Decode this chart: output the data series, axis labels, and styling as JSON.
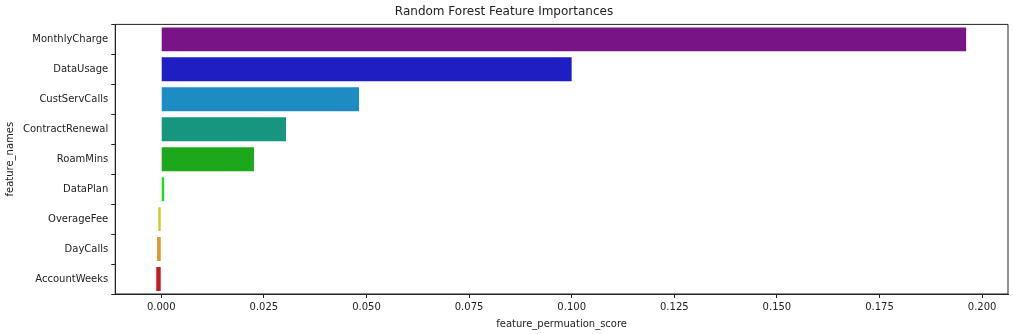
{
  "chart_data": {
    "type": "bar",
    "orientation": "horizontal",
    "title": "Random Forest Feature Importances",
    "xlabel": "feature_permuation_score",
    "ylabel": "feature_names",
    "categories": [
      "MonthlyCharge",
      "DataUsage",
      "CustServCalls",
      "ContractRenewal",
      "RoamMins",
      "DataPlan",
      "OverageFee",
      "DayCalls",
      "AccountWeeks"
    ],
    "values": [
      0.1961,
      0.1,
      0.0482,
      0.0304,
      0.0226,
      0.0007,
      -0.0007,
      -0.001,
      -0.0012
    ],
    "colors": [
      "#781486",
      "#1e1ec2",
      "#1c8cc2",
      "#16967e",
      "#1ca81a",
      "#16e016",
      "#cccc20",
      "#e0962a",
      "#c41c1c"
    ],
    "xlim": [
      -0.0112,
      0.2063
    ],
    "xticks": [
      {
        "value": 0,
        "label": "0.000"
      },
      {
        "value": 0.025,
        "label": "0.025"
      },
      {
        "value": 0.05,
        "label": "0.050"
      },
      {
        "value": 0.075,
        "label": "0.075"
      },
      {
        "value": 0.1,
        "label": "0.100"
      },
      {
        "value": 0.125,
        "label": "0.125"
      },
      {
        "value": 0.15,
        "label": "0.150"
      },
      {
        "value": 0.175,
        "label": "0.175"
      },
      {
        "value": 0.2,
        "label": "0.200"
      }
    ],
    "grid": false,
    "legend": false
  }
}
